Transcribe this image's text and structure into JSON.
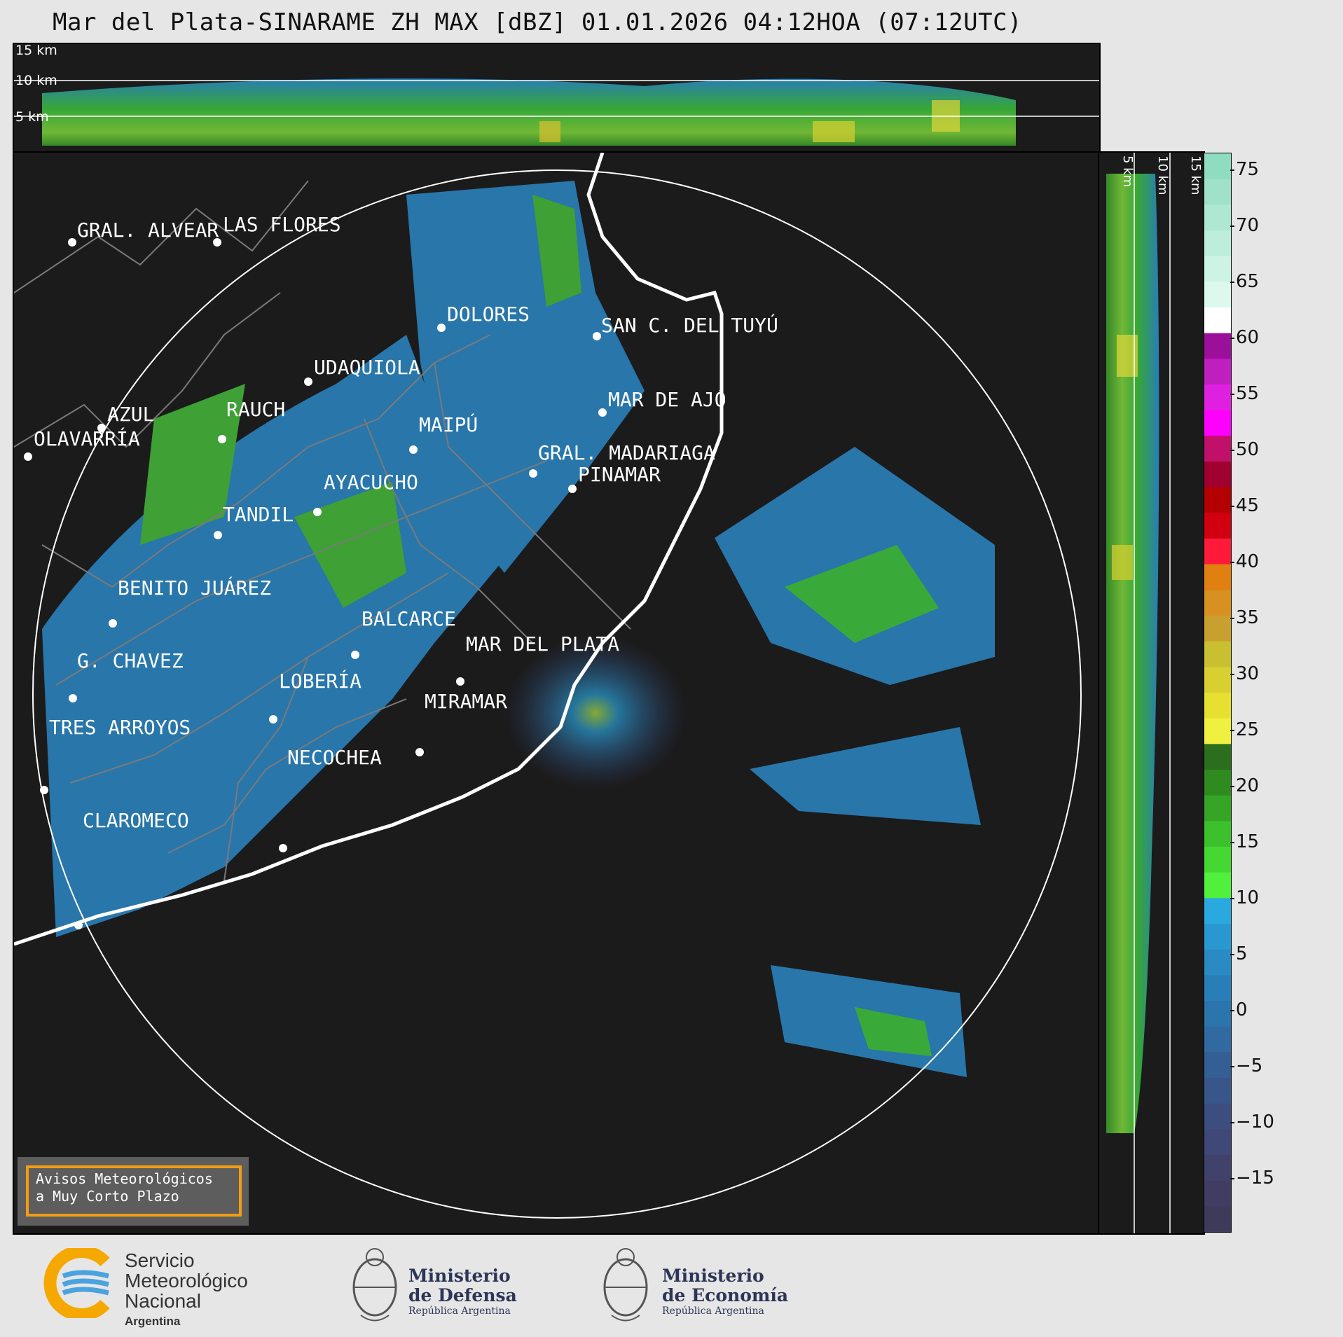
{
  "title": "Mar del Plata-SINARAME ZH MAX [dBZ] 01.01.2026 04:12HOA (07:12UTC)",
  "height_labels": [
    "15 km",
    "10 km",
    "5 km"
  ],
  "cities": [
    {
      "name": "GRAL. ALVEAR"
    },
    {
      "name": "LAS FLORES"
    },
    {
      "name": "DOLORES"
    },
    {
      "name": "SAN C. DEL TUYÚ"
    },
    {
      "name": "UDAQUIOLA"
    },
    {
      "name": "MAR DE AJÓ"
    },
    {
      "name": "AZUL"
    },
    {
      "name": "RAUCH"
    },
    {
      "name": "MAIPÚ"
    },
    {
      "name": "OLAVARRÍA"
    },
    {
      "name": "GRAL. MADARIAGA"
    },
    {
      "name": "PINAMAR"
    },
    {
      "name": "AYACUCHO"
    },
    {
      "name": "TANDIL"
    },
    {
      "name": "BENITO JUÁREZ"
    },
    {
      "name": "BALCARCE"
    },
    {
      "name": "MAR DEL PLATA"
    },
    {
      "name": "G. CHAVEZ"
    },
    {
      "name": "LOBERÍA"
    },
    {
      "name": "MIRAMAR"
    },
    {
      "name": "TRES ARROYOS"
    },
    {
      "name": "NECOCHEA"
    },
    {
      "name": "CLAROMECO"
    }
  ],
  "colorbar": {
    "unit": "dBZ",
    "ticks": [
      "75",
      "70",
      "65",
      "60",
      "55",
      "50",
      "45",
      "40",
      "35",
      "30",
      "25",
      "20",
      "15",
      "10",
      "5",
      "0",
      "−5",
      "−10",
      "−15"
    ]
  },
  "warning": {
    "line1": "Avisos Meteorológicos",
    "line2": "a Muy Corto Plazo"
  },
  "logos": {
    "smn": {
      "line1": "Servicio",
      "line2": "Meteorológico",
      "line3": "Nacional",
      "line4": "Argentina"
    },
    "defensa": {
      "line1": "Ministerio",
      "line2": "de Defensa",
      "line3": "República Argentina"
    },
    "economia": {
      "line1": "Ministerio",
      "line2": "de Economía",
      "line3": "República Argentina"
    }
  }
}
